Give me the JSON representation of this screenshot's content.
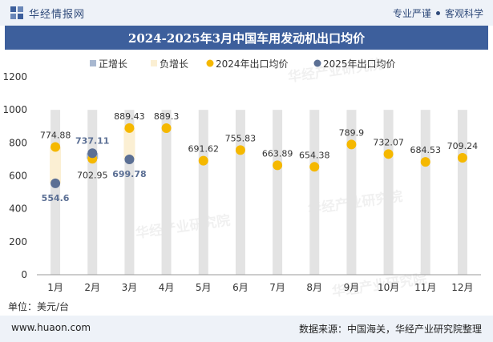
{
  "header": {
    "brand": "华经情报网",
    "slogan_left": "专业严谨",
    "slogan_right": "客观科学"
  },
  "title": "2024-2025年3月中国车用发动机出口均价",
  "unit": "单位：美元/台",
  "footer": {
    "url": "www.huaon.com",
    "source": "数据来源：中国海关，华经产业研究院整理"
  },
  "watermark": "华经产业研究院",
  "watermark_url": "www.huaon.com",
  "colors": {
    "title_bg": "#3d5f9c",
    "bar": "#e3e3e3",
    "positive": "#a8b8d0",
    "negative": "#fbefd3",
    "series2024": "#f5b800",
    "series2025": "#5b6f94"
  },
  "chart_data": {
    "type": "line",
    "categories": [
      "1月",
      "2月",
      "3月",
      "4月",
      "5月",
      "6月",
      "7月",
      "8月",
      "9月",
      "10月",
      "11月",
      "12月"
    ],
    "ylim": [
      0,
      1200
    ],
    "yticks": [
      0,
      200,
      400,
      600,
      800,
      1000,
      1200
    ],
    "legend": [
      "正增长",
      "负增长",
      "2024年出口均价",
      "2025年出口均价"
    ],
    "legend_position": "top-center",
    "series": [
      {
        "name": "2024年出口均价",
        "values": [
          774.88,
          702.95,
          889.43,
          889.3,
          691.62,
          755.83,
          663.89,
          654.38,
          789.9,
          732.07,
          684.53,
          709.24
        ]
      },
      {
        "name": "2025年出口均价",
        "values": [
          554.6,
          737.11,
          699.78,
          null,
          null,
          null,
          null,
          null,
          null,
          null,
          null,
          null
        ]
      }
    ]
  }
}
